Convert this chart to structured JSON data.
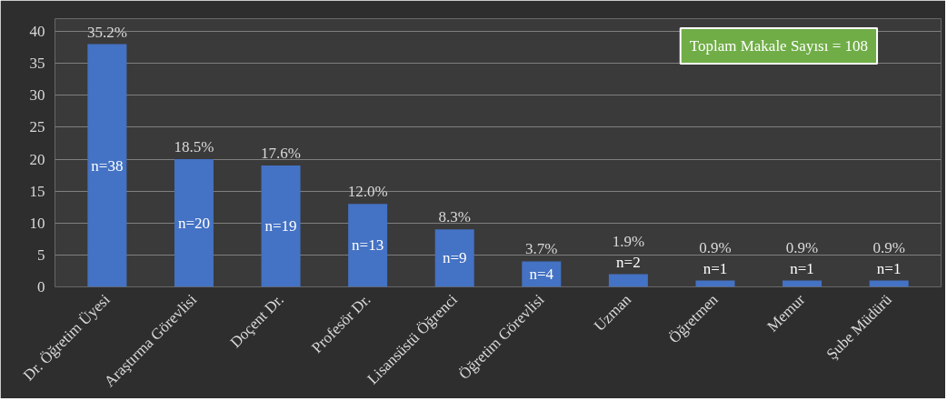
{
  "chart_data": {
    "type": "bar",
    "categories": [
      "Dr. Öğretim Üyesi",
      "Araştırma Görevlisi",
      "Doçent Dr.",
      "Profesör Dr.",
      "Lisansüstü Öğrenci",
      "Öğretim Görevlisi",
      "Uzman",
      "Öğretmen",
      "Memur",
      "Şube Müdürü"
    ],
    "values": [
      38,
      20,
      19,
      13,
      9,
      4,
      2,
      1,
      1,
      1
    ],
    "value_labels": [
      "n=38",
      "n=20",
      "n=19",
      "n=13",
      "n=9",
      "n=4",
      "n=2",
      "n=1",
      "n=1",
      "n=1"
    ],
    "color": "#4472c4",
    "ylim": [
      0,
      42
    ],
    "yticks": [
      0,
      5,
      10,
      15,
      20,
      25,
      30,
      35,
      40
    ],
    "grid": "y",
    "annotations": [
      {
        "text": "35.2%",
        "x": "Dr. Öğretim Üyesi",
        "y": 38
      },
      {
        "text": "18.5%",
        "x": "Araştırma Görevlisi",
        "y": 20
      },
      {
        "text": "17.6%",
        "x": "Doçent Dr.",
        "y": 19
      },
      {
        "text": "12.0%",
        "x": "Profesör Dr.",
        "y": 13
      },
      {
        "text": "8.3%",
        "x": "Lisansüstü Öğrenci",
        "y": 9
      },
      {
        "text": "3.7%",
        "x": "Öğretim Görevlisi",
        "y": 4
      },
      {
        "text": "1.9%",
        "x": "Uzman",
        "y": 2
      },
      {
        "text": "0.9%",
        "x": "Öğretmen",
        "y": 1
      },
      {
        "text": "0.9%",
        "x": "Memur",
        "y": 1
      },
      {
        "text": "0.9%",
        "x": "Şube Müdürü",
        "y": 1
      },
      "Toplam Makale Sayısı = 108"
    ]
  }
}
